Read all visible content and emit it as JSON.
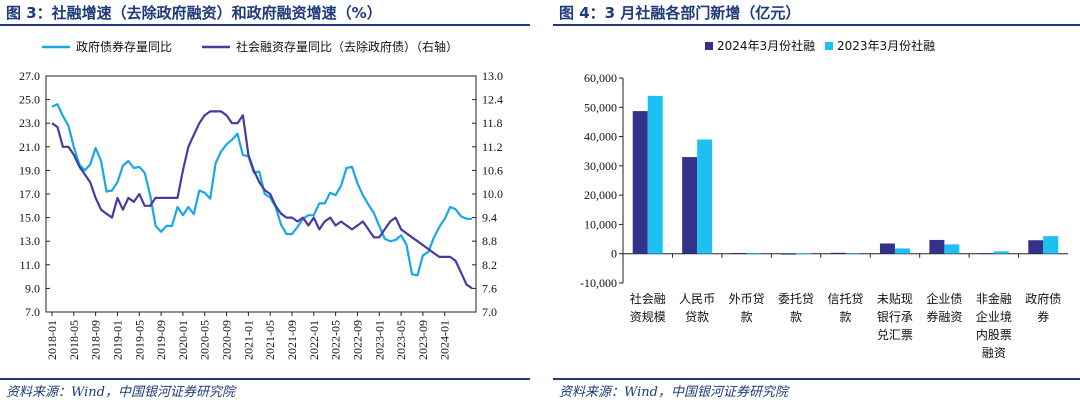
{
  "figure3": {
    "title": "图 3：社融增速（去除政府融资）和政府融资增速（%）",
    "source": "资料来源：Wind，中国银河证券研究院",
    "chart_data": {
      "type": "line",
      "legend": [
        "政府债券存量同比",
        "社会融资存量同比（去除政府债）（右轴）"
      ],
      "legend_placement": "top",
      "xlabels": [
        "2018-01",
        "2018-05",
        "2018-09",
        "2019-01",
        "2019-05",
        "2019-09",
        "2020-01",
        "2020-05",
        "2020-09",
        "2021-01",
        "2021-05",
        "2021-09",
        "2022-01",
        "2022-05",
        "2022-09",
        "2023-01",
        "2023-05",
        "2023-09",
        "2024-01"
      ],
      "y_left": {
        "ticks": [
          "27.0",
          "25.0",
          "23.0",
          "21.0",
          "19.0",
          "17.0",
          "15.0",
          "13.0",
          "11.0",
          "9.0",
          "7.0"
        ],
        "ylim": [
          7,
          27
        ]
      },
      "y_right": {
        "ticks": [
          "13.0",
          "12.4",
          "11.8",
          "11.2",
          "10.6",
          "10.0",
          "9.4",
          "8.8",
          "8.2",
          "7.6",
          "7.0"
        ],
        "ylim": [
          7,
          13
        ]
      },
      "colors": {
        "series1": "#1aa7e6",
        "series2": "#4a3aa0"
      },
      "series": [
        {
          "name": "政府债券存量同比",
          "axis": "left",
          "values": [
            24.4,
            24.6,
            23.6,
            22.8,
            21.0,
            19.5,
            19.0,
            19.5,
            20.9,
            19.8,
            17.2,
            17.3,
            18.0,
            19.4,
            19.8,
            19.2,
            19.3,
            18.8,
            16.9,
            14.3,
            13.8,
            14.3,
            14.3,
            15.9,
            15.2,
            15.9,
            15.3,
            17.3,
            17.1,
            16.6,
            19.6,
            20.6,
            21.2,
            21.6,
            22.1,
            20.3,
            20.2,
            18.8,
            18.9,
            17.0,
            16.7,
            15.9,
            14.4,
            13.6,
            13.6,
            14.2,
            14.9,
            15.2,
            15.2,
            16.2,
            16.2,
            17.1,
            16.9,
            17.7,
            19.2,
            19.3,
            17.9,
            16.9,
            16.1,
            15.4,
            14.3,
            13.2,
            13.0,
            13.1,
            13.5,
            12.7,
            10.2,
            10.1,
            11.8,
            12.1,
            13.3,
            14.2,
            14.9,
            15.9,
            15.7,
            15.1,
            14.9,
            14.9
          ]
        },
        {
          "name": "社会融资存量同比（去除政府债）（右轴）",
          "axis": "right",
          "values": [
            11.8,
            11.7,
            11.2,
            11.2,
            11.0,
            10.7,
            10.5,
            10.3,
            9.9,
            9.6,
            9.5,
            9.4,
            9.9,
            9.6,
            9.9,
            9.8,
            10.0,
            9.7,
            9.7,
            9.9,
            9.9,
            9.9,
            9.9,
            9.9,
            10.6,
            11.2,
            11.5,
            11.8,
            12.0,
            12.1,
            12.1,
            12.1,
            12.0,
            11.8,
            11.8,
            12.0,
            11.0,
            10.6,
            10.3,
            10.1,
            10.0,
            9.7,
            9.5,
            9.4,
            9.4,
            9.3,
            9.4,
            9.2,
            9.4,
            9.1,
            9.3,
            9.4,
            9.2,
            9.3,
            9.2,
            9.1,
            9.2,
            9.3,
            9.1,
            8.9,
            8.9,
            9.1,
            9.3,
            9.4,
            9.1,
            9.0,
            8.9,
            8.8,
            8.7,
            8.6,
            8.5,
            8.4,
            8.4,
            8.4,
            8.3,
            8.0,
            7.7,
            7.6
          ]
        }
      ]
    }
  },
  "figure4": {
    "title": "图 4：3 月社融各部门新增（亿元）",
    "source": "资料来源：Wind，中国银河证券研究院",
    "chart_data": {
      "type": "bar",
      "legend_placement": "top",
      "categories": [
        [
          "社会融",
          "资规模"
        ],
        [
          "人民币",
          "贷款"
        ],
        [
          "外币贷",
          "款"
        ],
        [
          "委托贷",
          "款"
        ],
        [
          "信托贷",
          "款"
        ],
        [
          "未贴现",
          "银行承",
          "兑汇票"
        ],
        [
          "企业债",
          "券融资"
        ],
        [
          "非金融",
          "企业境",
          "内股票",
          "融资"
        ],
        [
          "政府债",
          "券"
        ]
      ],
      "y_ticks": [
        "60,000",
        "50,000",
        "40,000",
        "30,000",
        "20,000",
        "10,000",
        "0",
        "-10,000"
      ],
      "ylim": [
        -10000,
        60000
      ],
      "colors": {
        "series1": "#33318a",
        "series2": "#1ec0f2"
      },
      "series": [
        {
          "name": "2024年3月份社融",
          "values": [
            48700,
            33000,
            250,
            -300,
            300,
            3500,
            4700,
            200,
            4600
          ]
        },
        {
          "name": "2023年3月份社融",
          "values": [
            53900,
            39000,
            -200,
            100,
            -100,
            1800,
            3200,
            800,
            6000
          ]
        }
      ]
    }
  }
}
